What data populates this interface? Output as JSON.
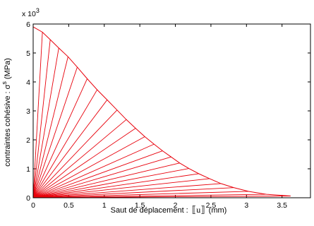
{
  "chart_data": {
    "type": "line",
    "xlabel_prefix": "Saut de déplacement : ",
    "xlabel_var": "u",
    "xlabel_unit": "(mm)",
    "ylabel_prefix": "contraintes cohésive : ",
    "ylabel_var": "σ",
    "ylabel_sup": "s",
    "ylabel_unit": "(MPa)",
    "y_multiplier_base": "x 10",
    "y_multiplier_exp": "3",
    "xlim": [
      0,
      3.9
    ],
    "ylim": [
      0,
      6000
    ],
    "xticks": [
      0,
      0.5,
      1,
      1.5,
      2,
      2.5,
      3,
      3.5
    ],
    "xtick_labels": [
      "0",
      "0.5",
      "1",
      "1.5",
      "2",
      "2.5",
      "3",
      "3.5"
    ],
    "yticks": [
      0,
      1000,
      2000,
      3000,
      4000,
      5000,
      6000
    ],
    "ytick_labels": [
      "0",
      "1",
      "2",
      "3",
      "4",
      "5",
      "6"
    ],
    "line_color": "#e8000b",
    "grid": false,
    "envelope": {
      "name": "",
      "x": [
        0,
        0.13,
        0.24,
        0.36,
        0.49,
        0.62,
        0.76,
        0.9,
        1.04,
        1.18,
        1.31,
        1.44,
        1.57,
        1.7,
        1.82,
        1.94,
        2.06,
        2.19,
        2.33,
        2.48,
        2.64,
        2.82,
        3.03,
        3.28,
        3.62
      ],
      "y": [
        5900,
        5720,
        5460,
        5170,
        4870,
        4510,
        4110,
        3730,
        3380,
        3030,
        2700,
        2400,
        2110,
        1850,
        1620,
        1410,
        1200,
        1010,
        830,
        660,
        490,
        350,
        220,
        120,
        60
      ]
    }
  }
}
